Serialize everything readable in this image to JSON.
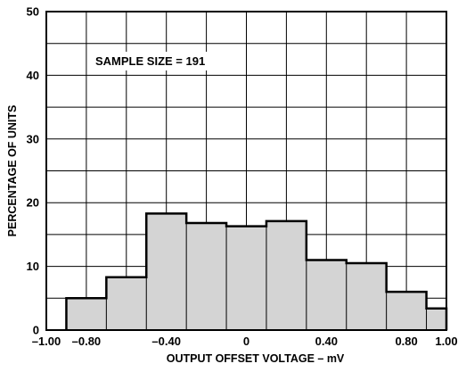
{
  "chart_data": {
    "type": "bar",
    "annotation": "SAMPLE SIZE = 191",
    "xlabel": "OUTPUT OFFSET VOLTAGE – mV",
    "ylabel": "PERCENTAGE OF UNITS",
    "xlim": [
      -1.0,
      1.0
    ],
    "ylim": [
      0,
      50
    ],
    "x_tick_labels": [
      "–1.00",
      "–0.80",
      "–0.40",
      "0",
      "0.40",
      "0.80",
      "1.00"
    ],
    "x_tick_values": [
      -1.0,
      -0.8,
      -0.4,
      0,
      0.4,
      0.8,
      1.0
    ],
    "y_ticks": [
      0,
      10,
      20,
      30,
      40,
      50
    ],
    "grid": true,
    "bins": [
      {
        "x0": -0.9,
        "x1": -0.7,
        "value": 5.0
      },
      {
        "x0": -0.7,
        "x1": -0.5,
        "value": 8.3
      },
      {
        "x0": -0.5,
        "x1": -0.3,
        "value": 18.3
      },
      {
        "x0": -0.3,
        "x1": -0.1,
        "value": 16.8
      },
      {
        "x0": -0.1,
        "x1": 0.1,
        "value": 16.3
      },
      {
        "x0": 0.1,
        "x1": 0.3,
        "value": 17.1
      },
      {
        "x0": 0.3,
        "x1": 0.5,
        "value": 11.0
      },
      {
        "x0": 0.5,
        "x1": 0.7,
        "value": 10.5
      },
      {
        "x0": 0.7,
        "x1": 0.9,
        "value": 6.0
      },
      {
        "x0": 0.9,
        "x1": 1.1,
        "value": 3.4
      }
    ],
    "colors": {
      "bar_fill": "#d4d4d4",
      "bar_stroke": "#000000",
      "grid": "#000000"
    }
  }
}
